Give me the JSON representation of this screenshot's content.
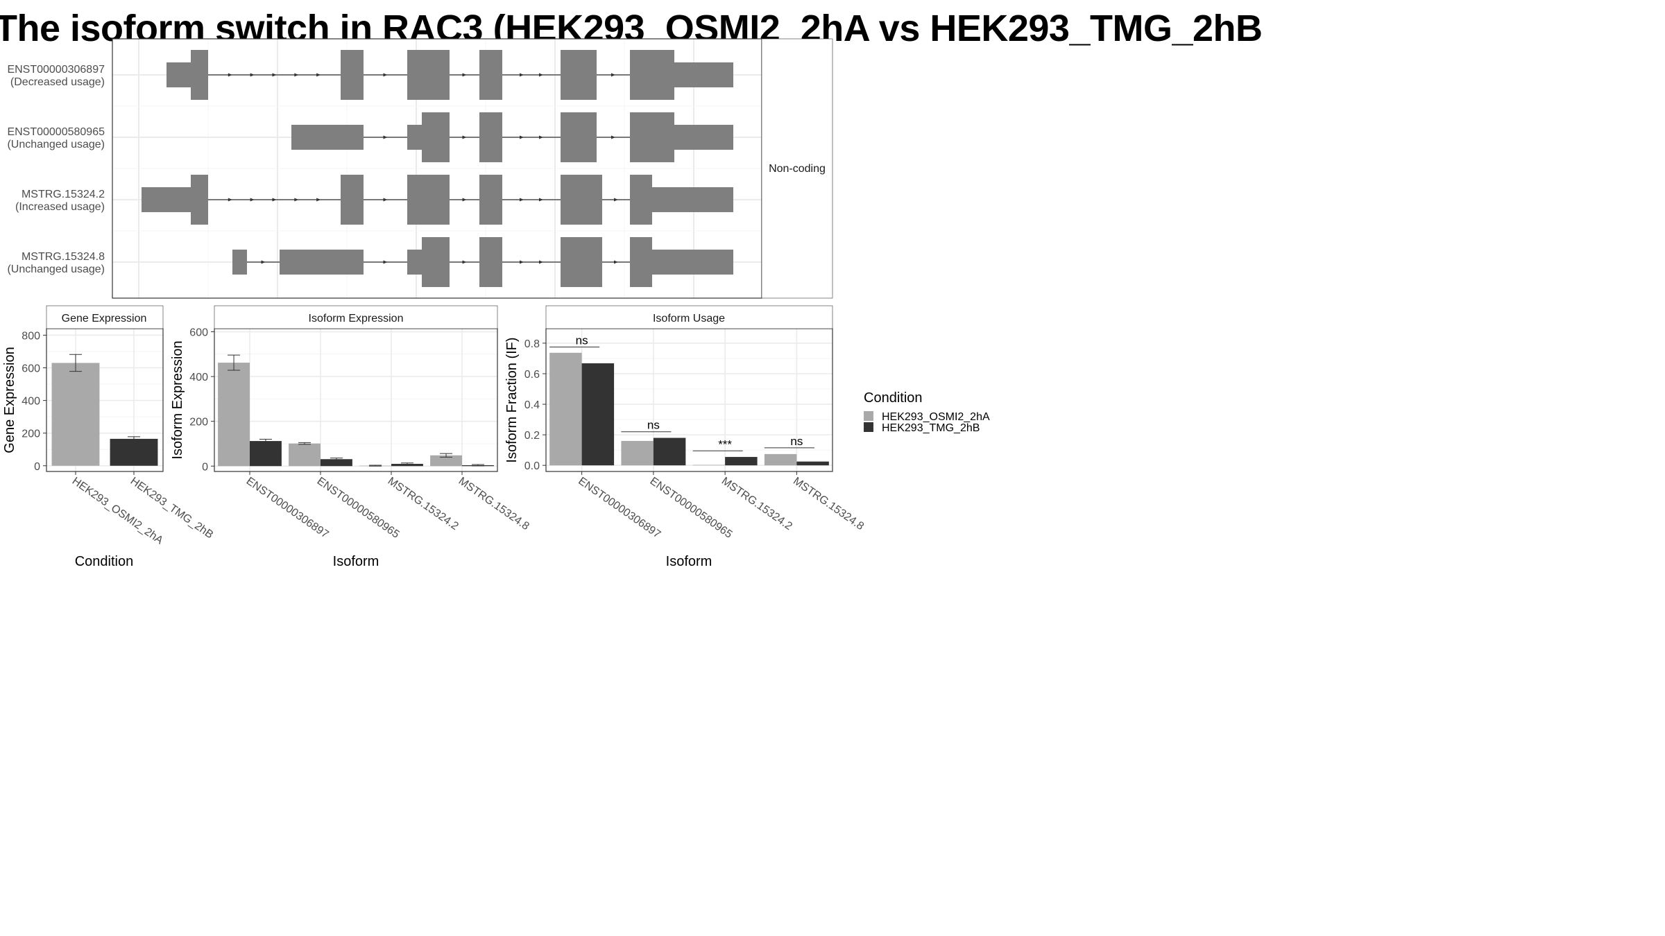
{
  "title": "The isoform switch in RAC3 (HEK293_OSMI2_2hA vs HEK293_TMG_2hB",
  "colors": {
    "exon": "#7f7f7f",
    "condition_a": "#a9a9a9",
    "condition_b": "#333333",
    "grid": "#ebebeb",
    "strip": "#ffffff"
  },
  "structure": {
    "coding_label": "Non-coding",
    "transcripts": [
      {
        "id": "ENST00000306897",
        "usage": "(Decreased usage)",
        "exons": [
          [
            240,
            300,
            "utr"
          ],
          [
            275,
            300,
            "cds"
          ],
          [
            491,
            524,
            "cds"
          ],
          [
            587,
            648,
            "cds"
          ],
          [
            691,
            724,
            "cds"
          ],
          [
            808,
            860,
            "cds"
          ],
          [
            908,
            972,
            "cds"
          ],
          [
            972,
            1057,
            "utr"
          ]
        ]
      },
      {
        "id": "ENST00000580965",
        "usage": "(Unchanged usage)",
        "exons": [
          [
            420,
            524,
            "utr"
          ],
          [
            587,
            608,
            "utr"
          ],
          [
            608,
            648,
            "cds"
          ],
          [
            691,
            724,
            "cds"
          ],
          [
            808,
            860,
            "cds"
          ],
          [
            908,
            972,
            "cds"
          ],
          [
            972,
            1057,
            "utr"
          ]
        ]
      },
      {
        "id": "MSTRG.15324.2",
        "usage": "(Increased usage)",
        "exons": [
          [
            204,
            276,
            "utr"
          ],
          [
            275,
            300,
            "cds"
          ],
          [
            491,
            524,
            "cds"
          ],
          [
            587,
            648,
            "cds"
          ],
          [
            691,
            724,
            "cds"
          ],
          [
            808,
            868,
            "cds"
          ],
          [
            908,
            940,
            "cds"
          ],
          [
            940,
            1057,
            "utr"
          ]
        ]
      },
      {
        "id": "MSTRG.15324.8",
        "usage": "(Unchanged usage)",
        "exons": [
          [
            335,
            356,
            "utr"
          ],
          [
            403,
            524,
            "utr"
          ],
          [
            587,
            608,
            "utr"
          ],
          [
            608,
            648,
            "cds"
          ],
          [
            691,
            724,
            "cds"
          ],
          [
            808,
            868,
            "cds"
          ],
          [
            908,
            940,
            "cds"
          ],
          [
            940,
            1057,
            "utr"
          ]
        ]
      }
    ]
  },
  "chart_data": [
    {
      "type": "bar",
      "title": "Gene Expression",
      "xlabel": "Condition",
      "ylabel": "Gene Expression",
      "categories": [
        "HEK293_OSMI2_2hA",
        "HEK293_TMG_2hB"
      ],
      "values": [
        630,
        165
      ],
      "errors": [
        [
          578,
          682
        ],
        [
          152,
          178
        ]
      ],
      "ylim": [
        -35,
        840
      ],
      "yticks": [
        "0",
        "200",
        "400",
        "600",
        "800"
      ],
      "grid": true
    },
    {
      "type": "bar",
      "title": "Isoform Expression",
      "xlabel": "Isoform",
      "ylabel": "Isoform Expression",
      "categories": [
        "ENST00000306897",
        "ENST00000580965",
        "MSTRG.15324.2",
        "MSTRG.15324.8"
      ],
      "series": [
        {
          "name": "HEK293_OSMI2_2hA",
          "values": [
            462,
            101,
            2,
            48
          ],
          "errors": [
            [
              428,
              496
            ],
            [
              97,
              105
            ],
            [
              0,
              4
            ],
            [
              40,
              56
            ]
          ]
        },
        {
          "name": "HEK293_TMG_2hB",
          "values": [
            112,
            31,
            10,
            4
          ],
          "errors": [
            [
              104,
              120
            ],
            [
              26,
              36
            ],
            [
              6,
              14
            ],
            [
              1,
              7
            ]
          ]
        }
      ],
      "ylim": [
        -24,
        614
      ],
      "yticks": [
        "0",
        "200",
        "400",
        "600"
      ],
      "grid": true
    },
    {
      "type": "bar",
      "title": "Isoform Usage",
      "xlabel": "Isoform",
      "ylabel": "Isoform Fraction (IF)",
      "categories": [
        "ENST00000306897",
        "ENST00000580965",
        "MSTRG.15324.2",
        "MSTRG.15324.8"
      ],
      "series": [
        {
          "name": "HEK293_OSMI2_2hA",
          "values": [
            0.737,
            0.16,
            0.003,
            0.074
          ]
        },
        {
          "name": "HEK293_TMG_2hB",
          "values": [
            0.668,
            0.18,
            0.055,
            0.025
          ]
        }
      ],
      "significance": [
        {
          "label": "ns",
          "y": 0.775
        },
        {
          "label": "ns",
          "y": 0.22
        },
        {
          "label": "***",
          "y": 0.095
        },
        {
          "label": "ns",
          "y": 0.115
        }
      ],
      "ylim": [
        -0.04,
        0.895
      ],
      "yticks": [
        "0.0",
        "0.2",
        "0.4",
        "0.6",
        "0.8"
      ],
      "grid": true
    }
  ],
  "legend": {
    "title": "Condition",
    "items": [
      "HEK293_OSMI2_2hA",
      "HEK293_TMG_2hB"
    ]
  }
}
